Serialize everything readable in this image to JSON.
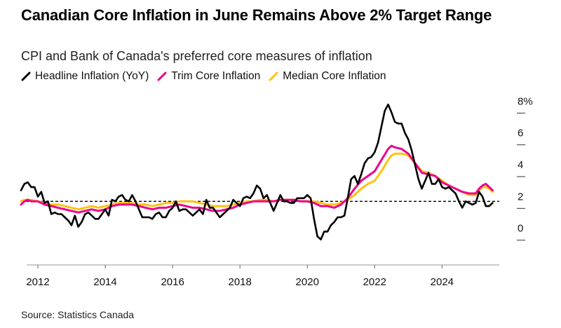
{
  "title": "Canadian Core Inflation in June Remains Above 2% Target Range",
  "subtitle": "CPI and Bank of Canada's preferred core measures of inflation",
  "source": "Source: Statistics Canada",
  "chart_data": {
    "type": "line",
    "title": "Canadian Core Inflation in June Remains Above 2% Target Range",
    "subtitle": "CPI and Bank of Canada's preferred core measures of inflation",
    "xlabel": "",
    "ylabel": "",
    "x_ticks": [
      "2012",
      "2014",
      "2016",
      "2018",
      "2020",
      "2022",
      "2024"
    ],
    "y_ticks": [
      "0",
      "2",
      "4",
      "6",
      "8%"
    ],
    "ylim": [
      -2,
      8.5
    ],
    "xlim": [
      2011.5,
      2025.7
    ],
    "y_axis_position": "right",
    "grid": false,
    "reference_line": {
      "y": 2,
      "style": "dashed"
    },
    "legend_position": "top-left",
    "series": [
      {
        "name": "Headline Inflation (YoY)",
        "color": "#000000",
        "points": [
          [
            2011.5,
            2.7
          ],
          [
            2011.6,
            3.1
          ],
          [
            2011.7,
            3.2
          ],
          [
            2011.8,
            2.9
          ],
          [
            2011.9,
            2.9
          ],
          [
            2012.0,
            2.3
          ],
          [
            2012.1,
            2.6
          ],
          [
            2012.2,
            1.9
          ],
          [
            2012.3,
            2.0
          ],
          [
            2012.4,
            1.2
          ],
          [
            2012.5,
            1.3
          ],
          [
            2012.6,
            1.2
          ],
          [
            2012.7,
            1.2
          ],
          [
            2012.8,
            1.0
          ],
          [
            2012.9,
            0.8
          ],
          [
            2013.0,
            0.5
          ],
          [
            2013.1,
            1.1
          ],
          [
            2013.2,
            0.4
          ],
          [
            2013.3,
            0.7
          ],
          [
            2013.4,
            1.2
          ],
          [
            2013.5,
            1.3
          ],
          [
            2013.6,
            1.1
          ],
          [
            2013.7,
            0.9
          ],
          [
            2013.8,
            0.9
          ],
          [
            2013.9,
            1.2
          ],
          [
            2014.0,
            1.5
          ],
          [
            2014.1,
            1.1
          ],
          [
            2014.2,
            2.1
          ],
          [
            2014.3,
            2.0
          ],
          [
            2014.4,
            2.3
          ],
          [
            2014.5,
            2.4
          ],
          [
            2014.6,
            2.1
          ],
          [
            2014.7,
            2.0
          ],
          [
            2014.8,
            2.4
          ],
          [
            2014.9,
            2.0
          ],
          [
            2015.0,
            1.5
          ],
          [
            2015.1,
            1.0
          ],
          [
            2015.2,
            1.0
          ],
          [
            2015.3,
            1.0
          ],
          [
            2015.4,
            0.9
          ],
          [
            2015.5,
            1.2
          ],
          [
            2015.6,
            1.3
          ],
          [
            2015.7,
            1.0
          ],
          [
            2015.8,
            1.0
          ],
          [
            2015.9,
            1.4
          ],
          [
            2016.0,
            1.6
          ],
          [
            2016.1,
            2.0
          ],
          [
            2016.2,
            1.4
          ],
          [
            2016.3,
            1.5
          ],
          [
            2016.4,
            1.5
          ],
          [
            2016.5,
            1.3
          ],
          [
            2016.6,
            1.1
          ],
          [
            2016.7,
            1.3
          ],
          [
            2016.8,
            1.5
          ],
          [
            2016.9,
            1.2
          ],
          [
            2017.0,
            2.1
          ],
          [
            2017.1,
            1.6
          ],
          [
            2017.2,
            1.6
          ],
          [
            2017.3,
            1.3
          ],
          [
            2017.4,
            1.0
          ],
          [
            2017.5,
            1.2
          ],
          [
            2017.6,
            1.4
          ],
          [
            2017.7,
            1.6
          ],
          [
            2017.8,
            2.1
          ],
          [
            2017.9,
            1.9
          ],
          [
            2018.0,
            1.7
          ],
          [
            2018.1,
            2.2
          ],
          [
            2018.2,
            2.3
          ],
          [
            2018.3,
            2.2
          ],
          [
            2018.4,
            2.5
          ],
          [
            2018.5,
            3.0
          ],
          [
            2018.6,
            2.8
          ],
          [
            2018.7,
            2.2
          ],
          [
            2018.8,
            2.4
          ],
          [
            2018.9,
            1.9
          ],
          [
            2019.0,
            1.4
          ],
          [
            2019.1,
            1.9
          ],
          [
            2019.2,
            2.4
          ],
          [
            2019.3,
            2.0
          ],
          [
            2019.4,
            2.0
          ],
          [
            2019.5,
            1.9
          ],
          [
            2019.6,
            1.9
          ],
          [
            2019.7,
            2.2
          ],
          [
            2019.8,
            2.2
          ],
          [
            2019.9,
            2.2
          ],
          [
            2020.0,
            2.4
          ],
          [
            2020.1,
            2.2
          ],
          [
            2020.2,
            0.9
          ],
          [
            2020.3,
            -0.2
          ],
          [
            2020.4,
            -0.4
          ],
          [
            2020.5,
            0.1
          ],
          [
            2020.6,
            0.1
          ],
          [
            2020.7,
            0.5
          ],
          [
            2020.8,
            0.7
          ],
          [
            2020.9,
            1.0
          ],
          [
            2021.0,
            1.0
          ],
          [
            2021.1,
            1.1
          ],
          [
            2021.2,
            2.2
          ],
          [
            2021.3,
            3.4
          ],
          [
            2021.4,
            3.6
          ],
          [
            2021.5,
            3.1
          ],
          [
            2021.6,
            3.7
          ],
          [
            2021.7,
            4.4
          ],
          [
            2021.8,
            4.7
          ],
          [
            2021.9,
            4.8
          ],
          [
            2022.0,
            5.1
          ],
          [
            2022.1,
            5.7
          ],
          [
            2022.2,
            6.7
          ],
          [
            2022.3,
            7.7
          ],
          [
            2022.4,
            8.1
          ],
          [
            2022.5,
            7.6
          ],
          [
            2022.6,
            7.0
          ],
          [
            2022.7,
            6.9
          ],
          [
            2022.8,
            6.9
          ],
          [
            2022.9,
            6.3
          ],
          [
            2023.0,
            5.9
          ],
          [
            2023.1,
            5.2
          ],
          [
            2023.2,
            4.3
          ],
          [
            2023.3,
            3.4
          ],
          [
            2023.4,
            2.8
          ],
          [
            2023.5,
            3.3
          ],
          [
            2023.6,
            3.8
          ],
          [
            2023.7,
            3.1
          ],
          [
            2023.8,
            3.1
          ],
          [
            2023.9,
            3.4
          ],
          [
            2024.0,
            2.9
          ],
          [
            2024.1,
            2.8
          ],
          [
            2024.2,
            2.9
          ],
          [
            2024.3,
            2.7
          ],
          [
            2024.4,
            2.5
          ],
          [
            2024.5,
            2.0
          ],
          [
            2024.6,
            1.6
          ],
          [
            2024.7,
            2.0
          ],
          [
            2024.8,
            1.9
          ],
          [
            2024.9,
            1.8
          ],
          [
            2025.0,
            1.9
          ],
          [
            2025.1,
            2.6
          ],
          [
            2025.2,
            2.3
          ],
          [
            2025.3,
            1.7
          ],
          [
            2025.4,
            1.7
          ],
          [
            2025.5,
            1.9
          ]
        ]
      },
      {
        "name": "Trim Core Inflation",
        "color": "#ec008c",
        "points": [
          [
            2011.5,
            1.8
          ],
          [
            2011.6,
            2.0
          ],
          [
            2011.7,
            2.1
          ],
          [
            2011.8,
            2.0
          ],
          [
            2012.0,
            2.0
          ],
          [
            2012.2,
            1.8
          ],
          [
            2012.4,
            1.7
          ],
          [
            2012.6,
            1.6
          ],
          [
            2012.8,
            1.5
          ],
          [
            2013.0,
            1.4
          ],
          [
            2013.2,
            1.3
          ],
          [
            2013.4,
            1.4
          ],
          [
            2013.6,
            1.5
          ],
          [
            2013.8,
            1.4
          ],
          [
            2014.0,
            1.5
          ],
          [
            2014.2,
            1.7
          ],
          [
            2014.4,
            1.8
          ],
          [
            2014.6,
            1.8
          ],
          [
            2014.8,
            1.8
          ],
          [
            2015.0,
            1.7
          ],
          [
            2015.2,
            1.6
          ],
          [
            2015.4,
            1.5
          ],
          [
            2015.6,
            1.6
          ],
          [
            2015.8,
            1.6
          ],
          [
            2016.0,
            1.7
          ],
          [
            2016.2,
            1.8
          ],
          [
            2016.4,
            1.7
          ],
          [
            2016.6,
            1.6
          ],
          [
            2016.8,
            1.6
          ],
          [
            2017.0,
            1.5
          ],
          [
            2017.2,
            1.4
          ],
          [
            2017.4,
            1.4
          ],
          [
            2017.6,
            1.5
          ],
          [
            2017.8,
            1.6
          ],
          [
            2018.0,
            1.8
          ],
          [
            2018.2,
            1.9
          ],
          [
            2018.4,
            2.0
          ],
          [
            2018.6,
            2.0
          ],
          [
            2018.8,
            2.0
          ],
          [
            2019.0,
            2.0
          ],
          [
            2019.2,
            2.1
          ],
          [
            2019.4,
            2.1
          ],
          [
            2019.6,
            2.1
          ],
          [
            2019.8,
            2.0
          ],
          [
            2020.0,
            2.0
          ],
          [
            2020.2,
            1.9
          ],
          [
            2020.4,
            1.7
          ],
          [
            2020.6,
            1.7
          ],
          [
            2020.8,
            1.6
          ],
          [
            2021.0,
            1.8
          ],
          [
            2021.2,
            2.2
          ],
          [
            2021.4,
            2.8
          ],
          [
            2021.6,
            3.3
          ],
          [
            2021.8,
            3.6
          ],
          [
            2022.0,
            3.9
          ],
          [
            2022.2,
            4.6
          ],
          [
            2022.4,
            5.3
          ],
          [
            2022.5,
            5.5
          ],
          [
            2022.6,
            5.4
          ],
          [
            2022.8,
            5.3
          ],
          [
            2023.0,
            5.0
          ],
          [
            2023.2,
            4.4
          ],
          [
            2023.4,
            3.8
          ],
          [
            2023.6,
            3.7
          ],
          [
            2023.8,
            3.6
          ],
          [
            2024.0,
            3.2
          ],
          [
            2024.2,
            3.0
          ],
          [
            2024.4,
            2.8
          ],
          [
            2024.6,
            2.6
          ],
          [
            2024.8,
            2.5
          ],
          [
            2025.0,
            2.5
          ],
          [
            2025.1,
            2.8
          ],
          [
            2025.2,
            3.0
          ],
          [
            2025.3,
            3.1
          ],
          [
            2025.4,
            2.9
          ],
          [
            2025.5,
            2.7
          ]
        ]
      },
      {
        "name": "Median Core Inflation",
        "color": "#ffc20e",
        "points": [
          [
            2011.5,
            2.0
          ],
          [
            2011.6,
            2.1
          ],
          [
            2011.7,
            2.1
          ],
          [
            2011.8,
            2.1
          ],
          [
            2012.0,
            2.0
          ],
          [
            2012.2,
            1.9
          ],
          [
            2012.4,
            1.8
          ],
          [
            2012.6,
            1.8
          ],
          [
            2012.8,
            1.7
          ],
          [
            2013.0,
            1.6
          ],
          [
            2013.2,
            1.5
          ],
          [
            2013.4,
            1.6
          ],
          [
            2013.6,
            1.7
          ],
          [
            2013.8,
            1.6
          ],
          [
            2014.0,
            1.7
          ],
          [
            2014.2,
            1.8
          ],
          [
            2014.4,
            1.9
          ],
          [
            2014.6,
            1.9
          ],
          [
            2014.8,
            1.9
          ],
          [
            2015.0,
            1.8
          ],
          [
            2015.2,
            1.8
          ],
          [
            2015.4,
            1.7
          ],
          [
            2015.6,
            1.8
          ],
          [
            2015.8,
            1.9
          ],
          [
            2016.0,
            1.9
          ],
          [
            2016.2,
            2.0
          ],
          [
            2016.4,
            2.0
          ],
          [
            2016.6,
            2.0
          ],
          [
            2016.8,
            1.9
          ],
          [
            2017.0,
            1.8
          ],
          [
            2017.2,
            1.7
          ],
          [
            2017.4,
            1.7
          ],
          [
            2017.6,
            1.7
          ],
          [
            2017.8,
            1.8
          ],
          [
            2018.0,
            1.9
          ],
          [
            2018.2,
            2.0
          ],
          [
            2018.4,
            2.0
          ],
          [
            2018.6,
            2.1
          ],
          [
            2018.8,
            2.1
          ],
          [
            2019.0,
            2.0
          ],
          [
            2019.2,
            2.1
          ],
          [
            2019.4,
            2.1
          ],
          [
            2019.6,
            2.1
          ],
          [
            2019.8,
            2.0
          ],
          [
            2020.0,
            2.0
          ],
          [
            2020.2,
            2.0
          ],
          [
            2020.4,
            1.9
          ],
          [
            2020.6,
            1.8
          ],
          [
            2020.8,
            1.8
          ],
          [
            2021.0,
            1.9
          ],
          [
            2021.2,
            2.1
          ],
          [
            2021.4,
            2.4
          ],
          [
            2021.6,
            2.8
          ],
          [
            2021.8,
            3.1
          ],
          [
            2022.0,
            3.3
          ],
          [
            2022.2,
            3.9
          ],
          [
            2022.4,
            4.6
          ],
          [
            2022.5,
            4.9
          ],
          [
            2022.6,
            5.0
          ],
          [
            2022.8,
            5.0
          ],
          [
            2023.0,
            4.9
          ],
          [
            2023.2,
            4.4
          ],
          [
            2023.4,
            3.9
          ],
          [
            2023.6,
            3.8
          ],
          [
            2023.8,
            3.6
          ],
          [
            2024.0,
            3.3
          ],
          [
            2024.2,
            3.0
          ],
          [
            2024.4,
            2.8
          ],
          [
            2024.6,
            2.6
          ],
          [
            2024.8,
            2.4
          ],
          [
            2025.0,
            2.4
          ],
          [
            2025.1,
            2.7
          ],
          [
            2025.2,
            2.9
          ],
          [
            2025.3,
            2.9
          ],
          [
            2025.4,
            2.8
          ],
          [
            2025.5,
            2.6
          ]
        ]
      }
    ]
  }
}
